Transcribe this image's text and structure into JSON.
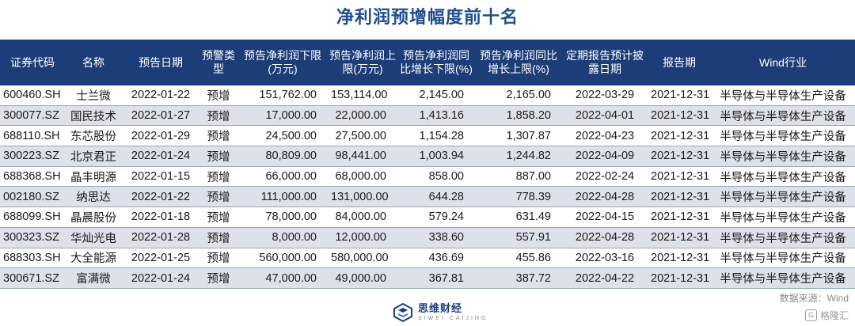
{
  "title": "净利润预增幅度前十名",
  "headers": [
    "证券代码",
    "名称",
    "预告日期",
    "预警类型",
    "预告净利润下限(万元)",
    "预告净利润上限(万元)",
    "预告净利润同比增长下限(%)",
    "预告净利润同比增长上限(%)",
    "定期报告预计披露日期",
    "报告期",
    "Wind行业"
  ],
  "rows": [
    [
      "600460.SH",
      "士兰微",
      "2022-01-22",
      "预增",
      "151,762.00",
      "153,114.00",
      "2,145.00",
      "2,165.00",
      "2022-03-29",
      "2021-12-31",
      "半导体与半导体生产设备"
    ],
    [
      "300077.SZ",
      "国民技术",
      "2022-01-27",
      "预增",
      "17,000.00",
      "22,000.00",
      "1,413.16",
      "1,858.20",
      "2022-04-01",
      "2021-12-31",
      "半导体与半导体生产设备"
    ],
    [
      "688110.SH",
      "东芯股份",
      "2022-01-29",
      "预增",
      "24,500.00",
      "27,500.00",
      "1,154.28",
      "1,307.87",
      "2022-04-23",
      "2021-12-31",
      "半导体与半导体生产设备"
    ],
    [
      "300223.SZ",
      "北京君正",
      "2022-01-24",
      "预增",
      "80,809.00",
      "98,441.00",
      "1,003.94",
      "1,244.82",
      "2022-04-09",
      "2021-12-31",
      "半导体与半导体生产设备"
    ],
    [
      "688368.SH",
      "晶丰明源",
      "2022-01-15",
      "预增",
      "66,000.00",
      "68,000.00",
      "858.00",
      "887.00",
      "2022-02-24",
      "2021-12-31",
      "半导体与半导体生产设备"
    ],
    [
      "002180.SZ",
      "纳思达",
      "2022-01-22",
      "预增",
      "111,000.00",
      "131,000.00",
      "644.28",
      "778.39",
      "2022-04-28",
      "2021-12-31",
      "半导体与半导体生产设备"
    ],
    [
      "688099.SH",
      "晶晨股份",
      "2022-01-18",
      "预增",
      "78,000.00",
      "84,000.00",
      "579.24",
      "631.49",
      "2022-04-15",
      "2021-12-31",
      "半导体与半导体生产设备"
    ],
    [
      "300323.SZ",
      "华灿光电",
      "2022-01-28",
      "预增",
      "8,000.00",
      "12,000.00",
      "338.60",
      "557.91",
      "2022-04-28",
      "2021-12-31",
      "半导体与半导体生产设备"
    ],
    [
      "688303.SH",
      "大全能源",
      "2022-01-25",
      "预增",
      "560,000.00",
      "580,000.00",
      "436.69",
      "455.86",
      "2022-03-16",
      "2021-12-31",
      "半导体与半导体生产设备"
    ],
    [
      "300671.SZ",
      "富满微",
      "2022-01-24",
      "预增",
      "47,000.00",
      "49,000.00",
      "367.81",
      "387.72",
      "2022-04-22",
      "2021-12-31",
      "半导体与半导体生产设备"
    ]
  ],
  "source": "数据来源：Wind",
  "logo": {
    "name": "思维财经",
    "sub": "SIWEI CAIJING"
  },
  "watermark": "格隆汇",
  "icons": {
    "logo": "siwei-logo-icon",
    "watermark": "gelonghui-icon"
  },
  "colors": {
    "header_bg": "#1d3d78",
    "title": "#1f4e8c",
    "row_alt": "#dde2ea"
  }
}
